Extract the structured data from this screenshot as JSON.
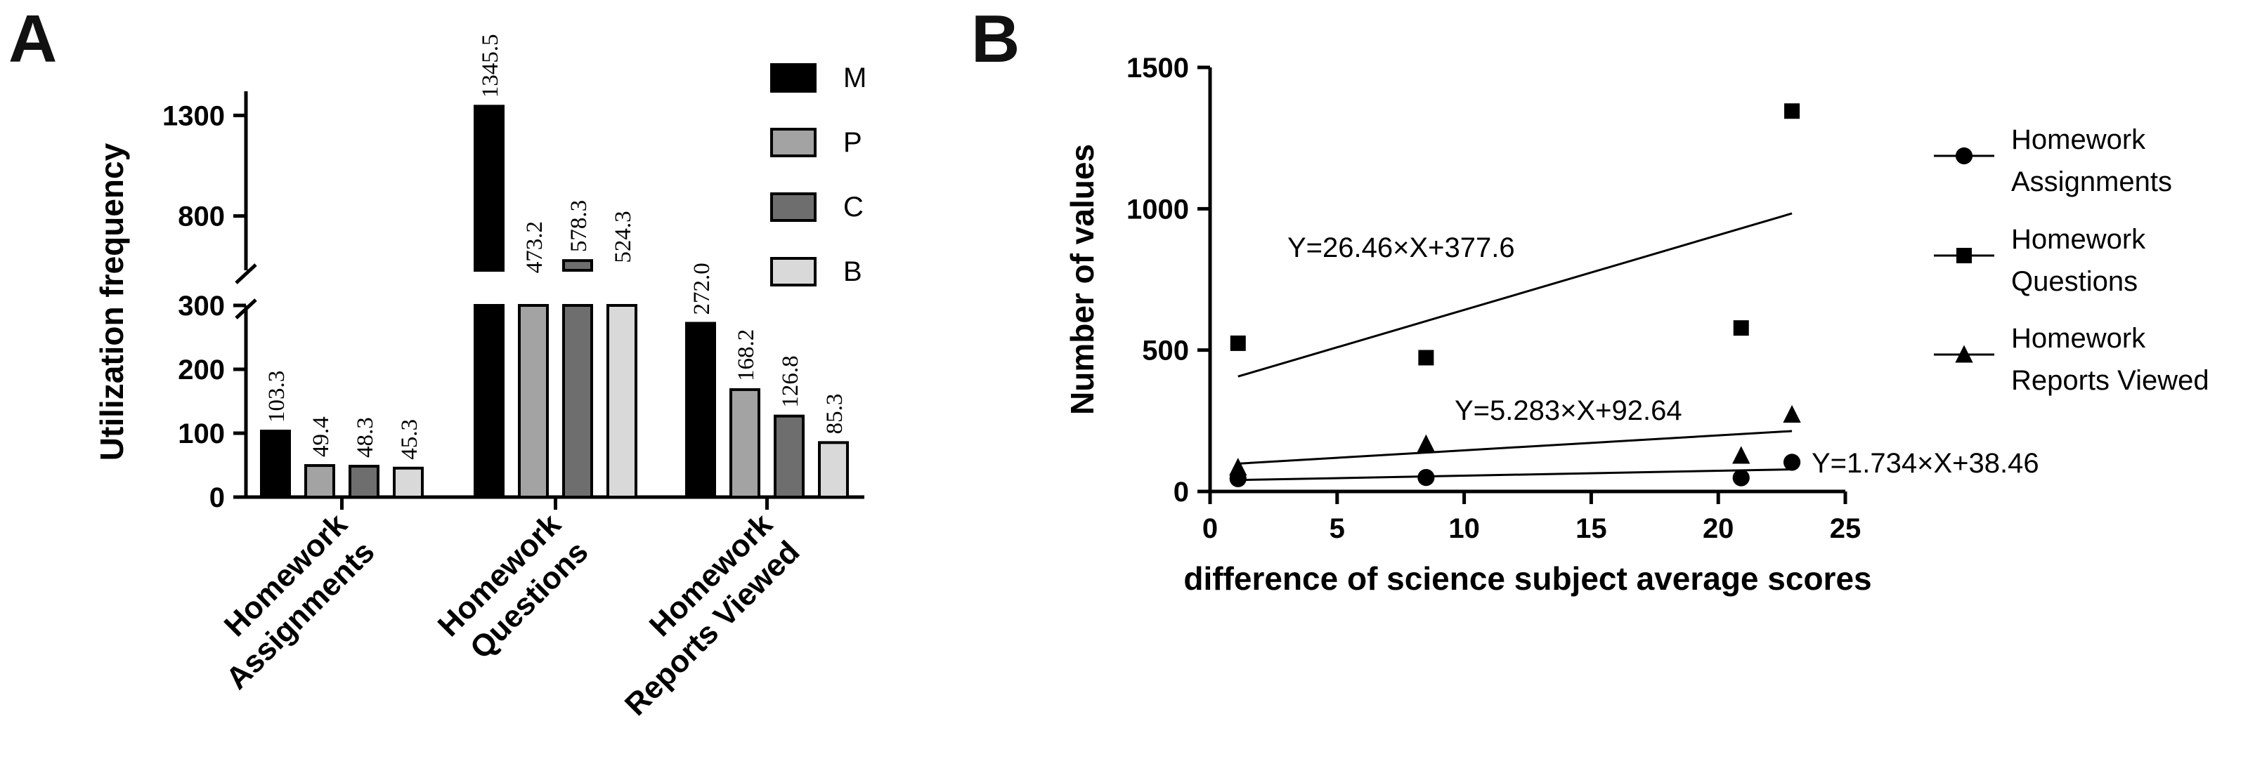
{
  "chart_data": [
    {
      "panel": "A",
      "type": "bar",
      "ylabel": "Utilization frequency",
      "xlabel": "",
      "y_axis_broken": true,
      "y_lower_range": [
        0,
        300
      ],
      "y_upper_range": [
        530,
        1350
      ],
      "y_ticks": [
        0,
        100,
        200,
        300,
        800,
        1300
      ],
      "categories": [
        [
          "Homework",
          "Assignments"
        ],
        [
          "Homework",
          "Questions"
        ],
        [
          "Homework",
          "Reports Viewed"
        ]
      ],
      "series": [
        {
          "name": "M",
          "color": "#000000",
          "values": [
            103.3,
            1345.5,
            272.0
          ],
          "labels": [
            "103.3",
            "1345.5",
            "272.0"
          ]
        },
        {
          "name": "P",
          "color": "#a3a3a3",
          "values": [
            49.4,
            473.2,
            168.2
          ],
          "labels": [
            "49.4",
            "473.2",
            "168.2"
          ]
        },
        {
          "name": "C",
          "color": "#6e6e6e",
          "values": [
            48.3,
            578.3,
            126.8
          ],
          "labels": [
            "48.3",
            "578.3",
            "126.8"
          ]
        },
        {
          "name": "B",
          "color": "#d9d9d9",
          "values": [
            45.3,
            524.3,
            85.3
          ],
          "labels": [
            "45.3",
            "524.3",
            "85.3"
          ]
        }
      ],
      "legend_position": "top-right"
    },
    {
      "panel": "B",
      "type": "scatter",
      "xlabel": "difference of science subject average scores",
      "ylabel": "Number of values",
      "xlim": [
        0,
        25
      ],
      "ylim": [
        0,
        1500
      ],
      "x_ticks": [
        0,
        5,
        10,
        15,
        20,
        25
      ],
      "y_ticks": [
        0,
        500,
        1000,
        1500
      ],
      "series": [
        {
          "name": [
            "Homework",
            "Assignments"
          ],
          "marker": "circle",
          "points": [
            [
              1.1,
              45.3
            ],
            [
              8.5,
              49.4
            ],
            [
              20.9,
              48.3
            ],
            [
              22.9,
              103.3
            ]
          ],
          "fit": {
            "slope": 1.734,
            "intercept": 38.46,
            "equation": "Y=1.734×X+38.46"
          }
        },
        {
          "name": [
            "Homework",
            "Questions"
          ],
          "marker": "square",
          "points": [
            [
              1.1,
              524.3
            ],
            [
              8.5,
              473.2
            ],
            [
              20.9,
              578.3
            ],
            [
              22.9,
              1345.5
            ]
          ],
          "fit": {
            "slope": 26.46,
            "intercept": 377.6,
            "equation": "Y=26.46×X+377.6"
          }
        },
        {
          "name": [
            "Homework",
            "Reports Viewed"
          ],
          "marker": "triangle",
          "points": [
            [
              1.1,
              85.3
            ],
            [
              8.5,
              168.2
            ],
            [
              20.9,
              126.8
            ],
            [
              22.9,
              272.0
            ]
          ],
          "fit": {
            "slope": 5.283,
            "intercept": 92.64,
            "equation": "Y=5.283×X+92.64"
          }
        }
      ],
      "fit_x_range": [
        1.1,
        22.9
      ],
      "legend_position": "right"
    }
  ]
}
